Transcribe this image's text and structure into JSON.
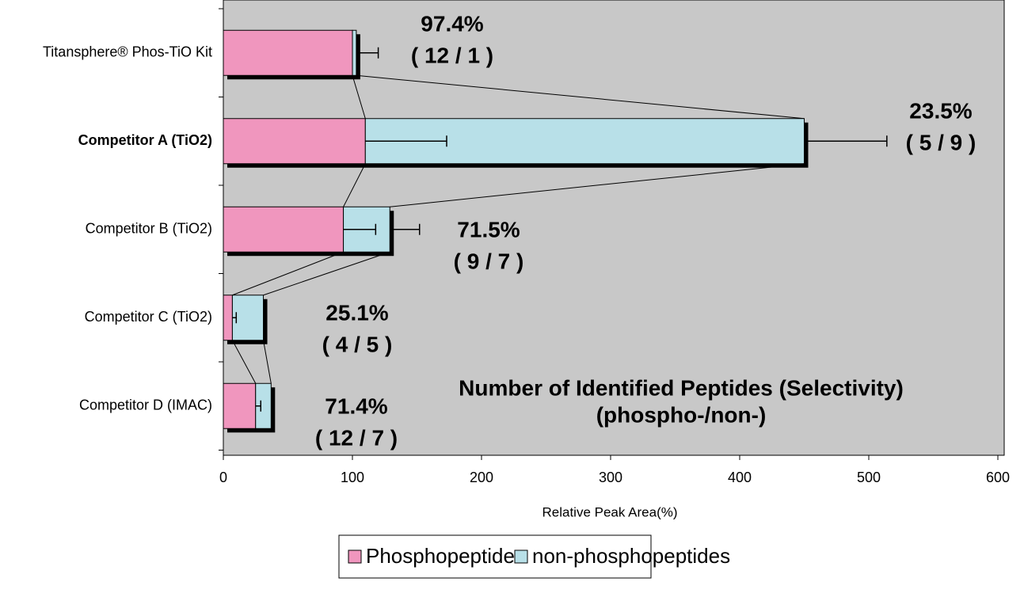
{
  "chart_data": {
    "type": "stacked-hbar",
    "categories": [
      "Titansphere® Phos-TiO Kit",
      "Competitor A (TiO2)",
      "Competitor B (TiO2)",
      "Competitor C (TiO2)",
      "Competitor D (IMAC)"
    ],
    "category_label_colors": [
      "#000000",
      "#e3242b",
      "#000000",
      "#000000",
      "#000000"
    ],
    "series": [
      {
        "name": "Phosphopeptides",
        "color": "#f096be",
        "values": [
          100,
          110,
          93,
          7,
          25
        ],
        "errors": [
          null,
          63,
          25,
          3,
          4
        ]
      },
      {
        "name": "non-phosphopeptides",
        "color": "#b8e0e8",
        "values": [
          3,
          340,
          36,
          24,
          12
        ],
        "errors": [
          17,
          64,
          23,
          null,
          null
        ]
      }
    ],
    "annotations": [
      [
        "97.4%",
        "( 12 / 1 )"
      ],
      [
        "23.5%",
        "( 5 / 9 )"
      ],
      [
        "71.5%",
        "( 9 / 7 )"
      ],
      [
        "25.1%",
        "( 4 / 5 )"
      ],
      [
        "71.4%",
        "( 12 / 7 )"
      ]
    ],
    "note": [
      "Number of Identified Peptides (Selectivity)",
      "(phospho-/non-)"
    ],
    "x_label": "Relative Peak Area(%)",
    "xlim": [
      0,
      600
    ],
    "xticks": [
      0,
      100,
      200,
      300,
      400,
      500,
      600
    ],
    "background": "#c8c8c8",
    "legend": "bottom"
  }
}
